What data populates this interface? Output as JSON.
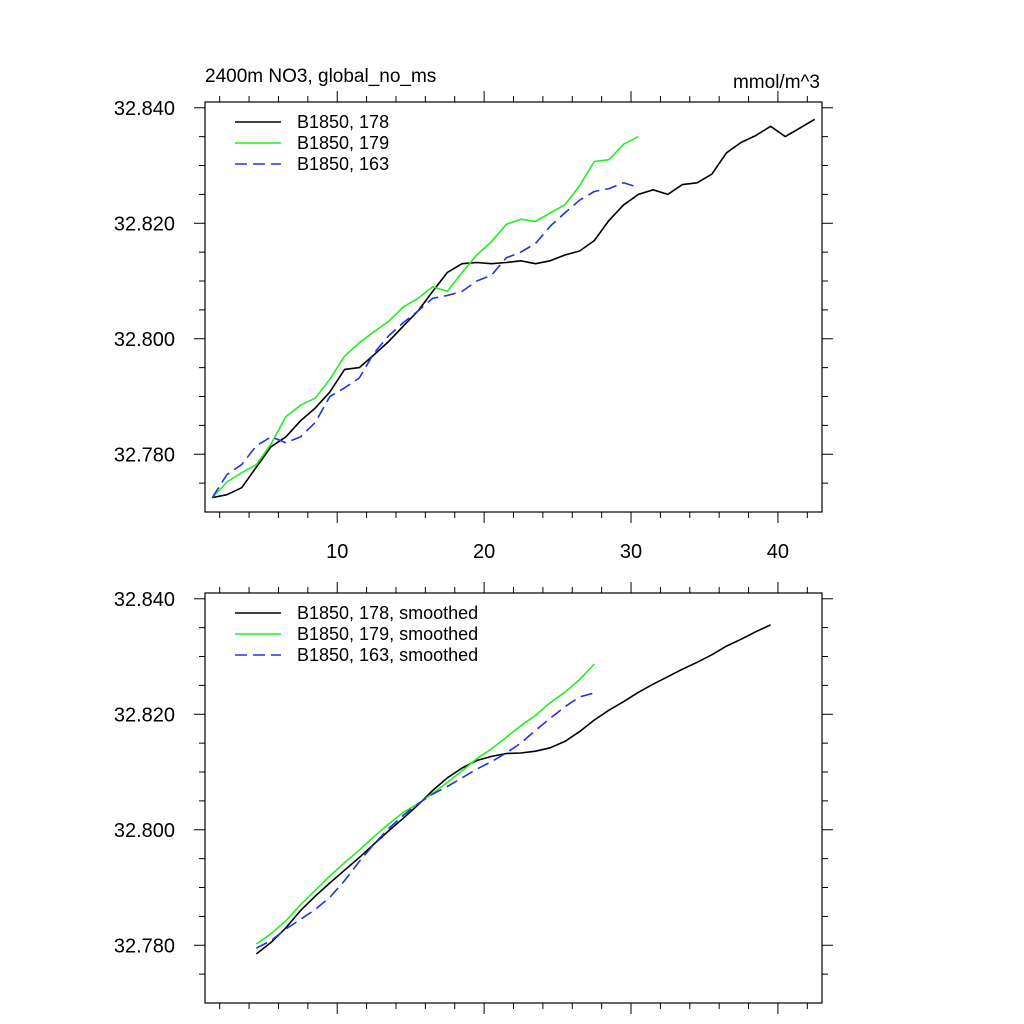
{
  "chart_data": [
    {
      "type": "line",
      "title": "2400m NO3, global_no_ms",
      "units": "mmol/m^3",
      "xlim": [
        1,
        43
      ],
      "ylim": [
        32.77,
        32.841
      ],
      "yticks": [
        32.78,
        32.8,
        32.82,
        32.84
      ],
      "yticklabels": [
        "32.780",
        "32.800",
        "32.820",
        "32.840"
      ],
      "xticks": [
        10,
        20,
        30,
        40
      ],
      "xticklabels": [
        "10",
        "20",
        "30",
        "40"
      ],
      "legend_position": "top-left",
      "series": [
        {
          "name": "B1850, 178",
          "color": "#000000",
          "dash": "solid",
          "x": [
            1.5,
            2.5,
            3.5,
            4.5,
            5.5,
            6.5,
            7.5,
            8.5,
            9.5,
            10.5,
            11.5,
            12.5,
            13.5,
            14.5,
            15.5,
            16.5,
            17.5,
            18.5,
            19.5,
            20.5,
            21.5,
            22.5,
            23.5,
            24.5,
            25.5,
            26.5,
            27.5,
            28.5,
            29.5,
            30.5,
            31.5,
            32.5,
            33.5,
            34.5,
            35.5,
            36.5,
            37.5,
            38.5,
            39.5,
            40.5,
            41.5,
            42.5
          ],
          "y": [
            32.7725,
            32.773,
            32.7742,
            32.7778,
            32.7813,
            32.783,
            32.7858,
            32.788,
            32.7908,
            32.7947,
            32.795,
            32.7972,
            32.7995,
            32.8022,
            32.8048,
            32.8082,
            32.8115,
            32.813,
            32.8132,
            32.813,
            32.8132,
            32.8135,
            32.813,
            32.8135,
            32.8145,
            32.8152,
            32.817,
            32.8205,
            32.8232,
            32.825,
            32.8258,
            32.825,
            32.8267,
            32.827,
            32.8285,
            32.8322,
            32.834,
            32.8352,
            32.8368,
            32.835,
            32.8365,
            32.838
          ]
        },
        {
          "name": "B1850, 179",
          "color": "#22ee22",
          "dash": "solid",
          "x": [
            1.5,
            2.5,
            3.5,
            4.5,
            5.5,
            6.5,
            7.5,
            8.5,
            9.5,
            10.5,
            11.5,
            12.5,
            13.5,
            14.5,
            15.5,
            16.5,
            17.5,
            18.5,
            19.5,
            20.5,
            21.5,
            22.5,
            23.5,
            24.5,
            25.5,
            26.5,
            27.5,
            28.5,
            29.5,
            30.5
          ],
          "y": [
            32.7725,
            32.7752,
            32.7768,
            32.7782,
            32.7818,
            32.7865,
            32.7885,
            32.7897,
            32.793,
            32.797,
            32.7993,
            32.8012,
            32.803,
            32.8055,
            32.807,
            32.809,
            32.8082,
            32.8115,
            32.8145,
            32.8168,
            32.8198,
            32.8207,
            32.8203,
            32.8218,
            32.8232,
            32.8265,
            32.8307,
            32.831,
            32.8337,
            32.835
          ]
        },
        {
          "name": "B1850, 163",
          "color": "#2233dd",
          "dash": "dashed",
          "x": [
            1.5,
            2.5,
            3.5,
            4.5,
            5.5,
            6.5,
            7.5,
            8.5,
            9.5,
            10.5,
            11.5,
            12.5,
            13.5,
            14.5,
            15.5,
            16.5,
            17.5,
            18.5,
            19.5,
            20.5,
            21.5,
            22.5,
            23.5,
            24.5,
            25.5,
            26.5,
            27.5,
            28.5,
            29.5,
            30.5
          ],
          "y": [
            32.7725,
            32.7765,
            32.7782,
            32.7815,
            32.783,
            32.782,
            32.783,
            32.7855,
            32.79,
            32.7915,
            32.7932,
            32.7975,
            32.8005,
            32.8028,
            32.8048,
            32.807,
            32.8075,
            32.8082,
            32.81,
            32.811,
            32.814,
            32.815,
            32.8165,
            32.8195,
            32.8218,
            32.824,
            32.8255,
            32.826,
            32.827,
            32.8262
          ]
        }
      ]
    },
    {
      "type": "line",
      "title": "",
      "units": "",
      "xlim": [
        1,
        43
      ],
      "ylim": [
        32.77,
        32.841
      ],
      "yticks": [
        32.78,
        32.8,
        32.82,
        32.84
      ],
      "yticklabels": [
        "32.780",
        "32.800",
        "32.820",
        "32.840"
      ],
      "xticks": [
        10,
        20,
        30,
        40
      ],
      "xticklabels": [],
      "legend_position": "top-left",
      "series": [
        {
          "name": "B1850, 178, smoothed",
          "color": "#000000",
          "dash": "solid",
          "x": [
            4.5,
            5.5,
            6.5,
            7.5,
            8.5,
            9.5,
            10.5,
            11.5,
            12.5,
            13.5,
            14.5,
            15.5,
            16.5,
            17.5,
            18.5,
            19.5,
            20.5,
            21.5,
            22.5,
            23.5,
            24.5,
            25.5,
            26.5,
            27.5,
            28.5,
            29.5,
            30.5,
            31.5,
            32.5,
            33.5,
            34.5,
            35.5,
            36.5,
            37.5,
            38.5,
            39.5
          ],
          "y": [
            32.7785,
            32.7805,
            32.783,
            32.786,
            32.7885,
            32.7908,
            32.793,
            32.7952,
            32.7975,
            32.7998,
            32.802,
            32.8043,
            32.8068,
            32.809,
            32.8107,
            32.812,
            32.8127,
            32.8132,
            32.8133,
            32.8136,
            32.8142,
            32.8153,
            32.817,
            32.819,
            32.8207,
            32.8222,
            32.8238,
            32.8252,
            32.8265,
            32.8278,
            32.829,
            32.8303,
            32.8318,
            32.833,
            32.8343,
            32.8355
          ]
        },
        {
          "name": "B1850, 179, smoothed",
          "color": "#22ee22",
          "dash": "solid",
          "x": [
            4.5,
            5.5,
            6.5,
            7.5,
            8.5,
            9.5,
            10.5,
            11.5,
            12.5,
            13.5,
            14.5,
            15.5,
            16.5,
            17.5,
            18.5,
            19.5,
            20.5,
            21.5,
            22.5,
            23.5,
            24.5,
            25.5,
            26.5,
            27.5
          ],
          "y": [
            32.7802,
            32.782,
            32.7842,
            32.787,
            32.7895,
            32.792,
            32.7943,
            32.7965,
            32.7988,
            32.801,
            32.803,
            32.8045,
            32.8063,
            32.8082,
            32.8102,
            32.8123,
            32.814,
            32.816,
            32.818,
            32.8198,
            32.822,
            32.8238,
            32.826,
            32.8287
          ]
        },
        {
          "name": "B1850, 163, smoothed",
          "color": "#2233dd",
          "dash": "dashed",
          "x": [
            4.5,
            5.5,
            6.5,
            7.5,
            8.5,
            9.5,
            10.5,
            11.5,
            12.5,
            13.5,
            14.5,
            15.5,
            16.5,
            17.5,
            18.5,
            19.5,
            20.5,
            21.5,
            22.5,
            23.5,
            24.5,
            25.5,
            26.5,
            27.5
          ],
          "y": [
            32.7795,
            32.7808,
            32.7828,
            32.7845,
            32.7862,
            32.7883,
            32.7912,
            32.7945,
            32.7975,
            32.8002,
            32.8025,
            32.8045,
            32.8062,
            32.8075,
            32.809,
            32.8105,
            32.8118,
            32.8133,
            32.815,
            32.8172,
            32.8193,
            32.8213,
            32.823,
            32.8237
          ]
        }
      ]
    }
  ]
}
